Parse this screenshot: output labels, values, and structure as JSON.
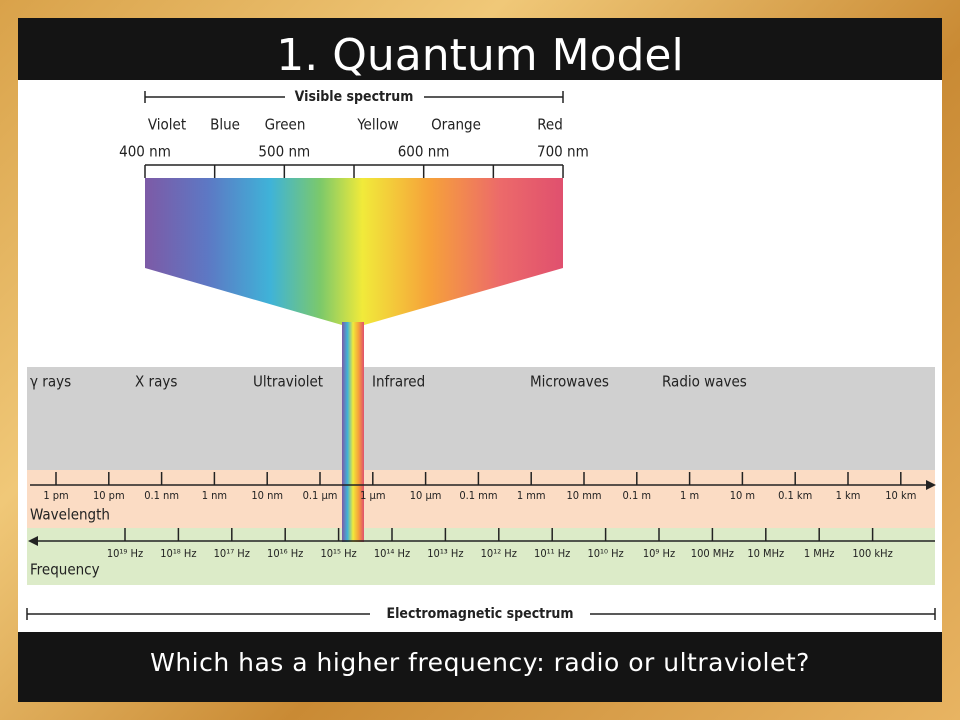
{
  "title": "1. Quantum Model",
  "question": "Which has a higher frequency: radio or ultraviolet?",
  "visible_spectrum": {
    "label": "Visible spectrum",
    "colors": [
      "Violet",
      "Blue",
      "Green",
      "Yellow",
      "Orange",
      "Red"
    ],
    "wavelengths": [
      "400 nm",
      "500 nm",
      "600 nm",
      "700 nm"
    ]
  },
  "em_spectrum": {
    "regions": [
      "γ rays",
      "X rays",
      "Ultraviolet",
      "Infrared",
      "Microwaves",
      "Radio waves"
    ],
    "wavelength_label": "Wavelength",
    "wavelengths": [
      "1 pm",
      "10 pm",
      "0.1 nm",
      "1 nm",
      "10 nm",
      "0.1 µm",
      "1 µm",
      "10 µm",
      "0.1 mm",
      "1 mm",
      "10 mm",
      "0.1 m",
      "1 m",
      "10 m",
      "0.1 km",
      "1 km",
      "10 km"
    ],
    "frequency_label": "Frequency",
    "frequencies": [
      "10¹⁹ Hz",
      "10¹⁸ Hz",
      "10¹⁷ Hz",
      "10¹⁶ Hz",
      "10¹⁵ Hz",
      "10¹⁴ Hz",
      "10¹³ Hz",
      "10¹² Hz",
      "10¹¹ Hz",
      "10¹⁰ Hz",
      "10⁹ Hz",
      "100 MHz",
      "10 MHz",
      "1 MHz",
      "100 kHz"
    ],
    "label": "Electromagnetic spectrum"
  }
}
